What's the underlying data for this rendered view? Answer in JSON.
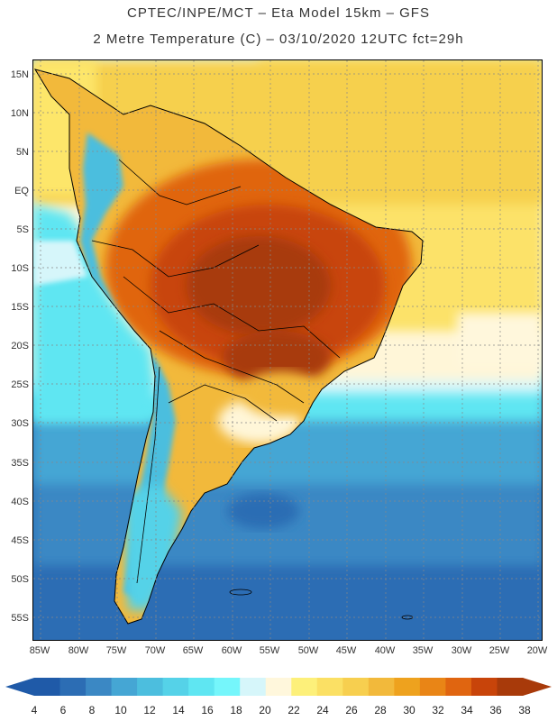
{
  "header": {
    "line1": "CPTEC/INPE/MCT –  Eta Model 15km – GFS",
    "line2": "2 Metre Temperature (C) – 03/10/2020 12UTC fct=29h"
  },
  "axes": {
    "lat_labels": [
      "15N",
      "10N",
      "5N",
      "EQ",
      "5S",
      "10S",
      "15S",
      "20S",
      "25S",
      "30S",
      "35S",
      "40S",
      "45S",
      "50S",
      "55S"
    ],
    "lon_labels": [
      "85W",
      "80W",
      "75W",
      "70W",
      "65W",
      "60W",
      "55W",
      "50W",
      "45W",
      "40W",
      "35W",
      "30W",
      "25W",
      "20W"
    ]
  },
  "colorbar": {
    "labels": [
      "4",
      "6",
      "8",
      "10",
      "12",
      "14",
      "16",
      "18",
      "20",
      "22",
      "24",
      "26",
      "28",
      "30",
      "32",
      "34",
      "36",
      "38"
    ],
    "colors": [
      "#1f5aa8",
      "#2c6db4",
      "#3b88c4",
      "#45a6d4",
      "#4cbede",
      "#55d2e8",
      "#5fe6f2",
      "#75f6fb",
      "#d6f6fa",
      "#fff7dc",
      "#fdf07a",
      "#fbe064",
      "#f7cf4f",
      "#f2b93b",
      "#eea21e",
      "#e98516",
      "#e06510",
      "#c8440a",
      "#a83a0a"
    ],
    "under_color": "#1f5aa8",
    "over_color": "#a83a0a"
  },
  "map": {
    "ocean_colors": {
      "tropical_pacific": "#fde66a",
      "caribbean": "#f6d04e",
      "tropical_atlantic": "#fce269",
      "subtropical": "#fff6d8",
      "cool_band": "#5fe6f2",
      "mid_lat": "#3b88c4",
      "south": "#2c6db4"
    },
    "land_colors": {
      "hot_core": "#a83a0a",
      "hot": "#c8440a",
      "warm": "#e06510",
      "mild": "#f2b93b",
      "andes_cold": "#4cbede",
      "patagonia": "#55d2e8"
    }
  }
}
